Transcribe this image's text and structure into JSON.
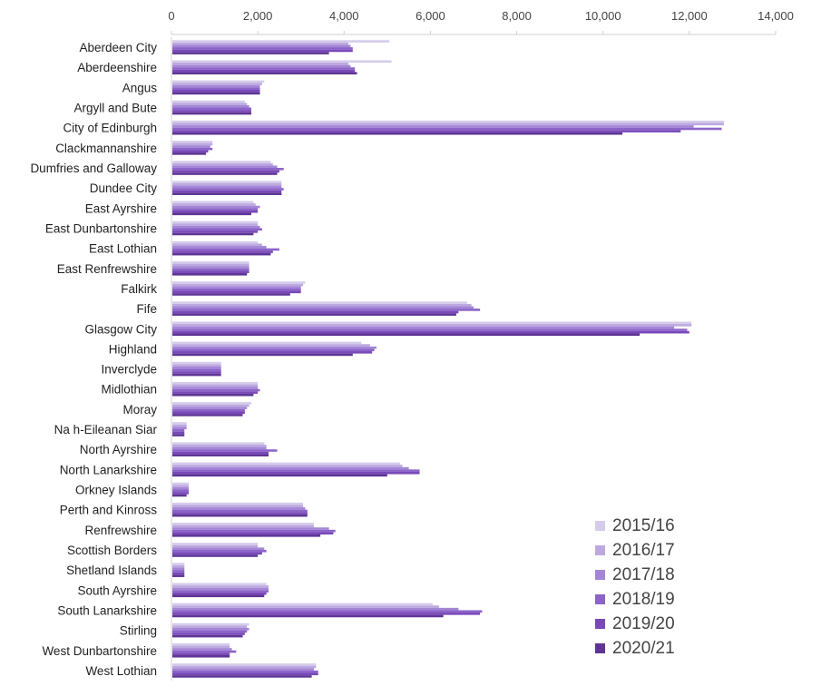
{
  "chart_data": {
    "type": "bar",
    "orientation": "horizontal",
    "title": "",
    "xlabel": "",
    "ylabel": "",
    "xlim": [
      0,
      14000
    ],
    "x_ticks": [
      "0",
      "2,000",
      "4,000",
      "6,000",
      "8,000",
      "10,000",
      "12,000",
      "14,000"
    ],
    "x_tick_values": [
      0,
      2000,
      4000,
      6000,
      8000,
      10000,
      12000,
      14000
    ],
    "x_axis_position": "top",
    "grid": false,
    "legend_position": "bottom-right",
    "categories": [
      "Aberdeen City",
      "Aberdeenshire",
      "Angus",
      "Argyll and Bute",
      "City of Edinburgh",
      "Clackmannanshire",
      "Dumfries and Galloway",
      "Dundee City",
      "East Ayrshire",
      "East Dunbartonshire",
      "East Lothian",
      "East Renfrewshire",
      "Falkirk",
      "Fife",
      "Glasgow City",
      "Highland",
      "Inverclyde",
      "Midlothian",
      "Moray",
      "Na h-Eileanan Siar",
      "North Ayrshire",
      "North Lanarkshire",
      "Orkney Islands",
      "Perth and Kinross",
      "Renfrewshire",
      "Scottish Borders",
      "Shetland Islands",
      "South Ayrshire",
      "South Lanarkshire",
      "Stirling",
      "West Dunbartonshire",
      "West Lothian"
    ],
    "series": [
      {
        "name": "2015/16",
        "color": "#d5cceb",
        "values": [
          5050,
          5100,
          2150,
          1700,
          12800,
          950,
          2300,
          2550,
          1900,
          2000,
          2000,
          1800,
          3100,
          6850,
          12050,
          4400,
          1150,
          2000,
          1850,
          350,
          2150,
          5300,
          400,
          3050,
          3300,
          2000,
          300,
          2200,
          6050,
          1800,
          1350,
          3350
        ]
      },
      {
        "name": "2016/17",
        "color": "#bda9e0",
        "values": [
          4100,
          4100,
          2100,
          1750,
          12800,
          950,
          2350,
          2550,
          1950,
          2000,
          2100,
          1800,
          3050,
          6950,
          12050,
          4600,
          1150,
          2000,
          1800,
          350,
          2200,
          5350,
          400,
          3050,
          3300,
          2000,
          300,
          2250,
          6200,
          1750,
          1350,
          3350
        ]
      },
      {
        "name": "2017/18",
        "color": "#a486d6",
        "values": [
          4150,
          4150,
          2050,
          1800,
          12100,
          900,
          2450,
          2550,
          2050,
          2050,
          2200,
          1800,
          3000,
          7000,
          11650,
          4750,
          1150,
          2000,
          1750,
          350,
          2200,
          5500,
          400,
          3100,
          3650,
          2150,
          300,
          2250,
          6650,
          1800,
          1400,
          3300
        ]
      },
      {
        "name": "2018/19",
        "color": "#8c64c9",
        "values": [
          4200,
          4250,
          2050,
          1850,
          12750,
          950,
          2600,
          2600,
          2000,
          2100,
          2500,
          1800,
          3000,
          7150,
          11950,
          4700,
          1150,
          2050,
          1700,
          300,
          2450,
          5750,
          400,
          3150,
          3800,
          2200,
          300,
          2250,
          7200,
          1750,
          1500,
          3400
        ]
      },
      {
        "name": "2019/20",
        "color": "#7949b8",
        "values": [
          4200,
          4250,
          2050,
          1850,
          11800,
          850,
          2500,
          2550,
          2000,
          2000,
          2350,
          1800,
          3000,
          6650,
          12000,
          4650,
          1150,
          2000,
          1700,
          300,
          2250,
          5750,
          400,
          3150,
          3750,
          2100,
          300,
          2200,
          7150,
          1700,
          1350,
          3400
        ]
      },
      {
        "name": "2020/21",
        "color": "#5e3594",
        "values": [
          3650,
          4300,
          2050,
          1850,
          10450,
          800,
          2450,
          2550,
          1850,
          1900,
          2300,
          1750,
          2750,
          6600,
          10850,
          4200,
          1150,
          1900,
          1650,
          300,
          2250,
          5000,
          350,
          3150,
          3450,
          2000,
          300,
          2150,
          6300,
          1650,
          1350,
          3250
        ]
      }
    ]
  }
}
